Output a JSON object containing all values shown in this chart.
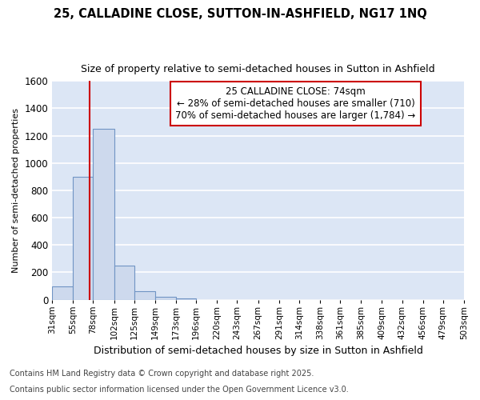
{
  "title": "25, CALLADINE CLOSE, SUTTON-IN-ASHFIELD, NG17 1NQ",
  "subtitle": "Size of property relative to semi-detached houses in Sutton in Ashfield",
  "xlabel": "Distribution of semi-detached houses by size in Sutton in Ashfield",
  "ylabel": "Number of semi-detached properties",
  "bar_values": [
    100,
    900,
    1250,
    250,
    60,
    20,
    10,
    0,
    0,
    0,
    0,
    0,
    0,
    0,
    0,
    0,
    0,
    0,
    0,
    0
  ],
  "bar_edges": [
    31,
    55,
    78,
    102,
    125,
    149,
    173,
    196,
    220,
    243,
    267,
    291,
    314,
    338,
    361,
    385,
    409,
    432,
    456,
    479,
    503
  ],
  "tick_labels": [
    "31sqm",
    "55sqm",
    "78sqm",
    "102sqm",
    "125sqm",
    "149sqm",
    "173sqm",
    "196sqm",
    "220sqm",
    "243sqm",
    "267sqm",
    "291sqm",
    "314sqm",
    "338sqm",
    "361sqm",
    "385sqm",
    "409sqm",
    "432sqm",
    "456sqm",
    "479sqm",
    "503sqm"
  ],
  "bar_color": "#cdd9ed",
  "bar_edge_color": "#7094c4",
  "vline_x": 74,
  "vline_color": "#cc0000",
  "ann_title": "25 CALLADINE CLOSE: 74sqm",
  "ann_line2": "← 28% of semi-detached houses are smaller (710)",
  "ann_line3": "70% of semi-detached houses are larger (1,784) →",
  "annotation_box_color": "#ffffff",
  "annotation_box_edge": "#cc0000",
  "ylim": [
    0,
    1600
  ],
  "yticks": [
    0,
    200,
    400,
    600,
    800,
    1000,
    1200,
    1400,
    1600
  ],
  "bg_color": "#dce6f5",
  "grid_color": "#ffffff",
  "fig_bg_color": "#ffffff",
  "footer1": "Contains HM Land Registry data © Crown copyright and database right 2025.",
  "footer2": "Contains public sector information licensed under the Open Government Licence v3.0.",
  "title_fontsize": 10.5,
  "subtitle_fontsize": 9,
  "xlabel_fontsize": 9,
  "ylabel_fontsize": 8,
  "tick_fontsize": 7.5,
  "annotation_fontsize": 8.5,
  "footer_fontsize": 7
}
